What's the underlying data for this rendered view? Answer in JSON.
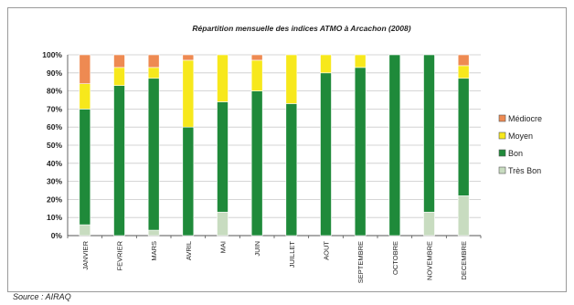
{
  "chart_data": {
    "type": "bar",
    "stacked": true,
    "percent": true,
    "title": "Répartition mensuelle des indices ATMO à Arcachon (2008)",
    "xlabel": "",
    "ylabel": "",
    "ylim": [
      0,
      100
    ],
    "y_ticks": [
      "0%",
      "10%",
      "20%",
      "30%",
      "40%",
      "50%",
      "60%",
      "70%",
      "80%",
      "90%",
      "100%"
    ],
    "grid": true,
    "legend_position": "right",
    "categories": [
      "JANVIER",
      "FEVRIER",
      "MARS",
      "AVRIL",
      "MAI",
      "JUIN",
      "JUILLET",
      "AOUT",
      "SEPTEMBRE",
      "OCTOBRE",
      "NOVEMBRE",
      "DECEMBRE"
    ],
    "series": [
      {
        "name": "Très Bon",
        "color": "#c8dcc0",
        "values": [
          6,
          0,
          3,
          0,
          13,
          0,
          0,
          0,
          0,
          0,
          13,
          22
        ]
      },
      {
        "name": "Bon",
        "color": "#1f8a3a",
        "values": [
          64,
          83,
          84,
          60,
          61,
          80,
          73,
          90,
          93,
          100,
          87,
          65
        ]
      },
      {
        "name": "Moyen",
        "color": "#f7e81c",
        "values": [
          14,
          10,
          6,
          37,
          26,
          17,
          27,
          10,
          7,
          0,
          0,
          7
        ]
      },
      {
        "name": "Médiocre",
        "color": "#ee8a52",
        "values": [
          16,
          7,
          7,
          3,
          0,
          3,
          0,
          0,
          0,
          0,
          0,
          6
        ]
      }
    ]
  },
  "source": "Source : AIRAQ"
}
